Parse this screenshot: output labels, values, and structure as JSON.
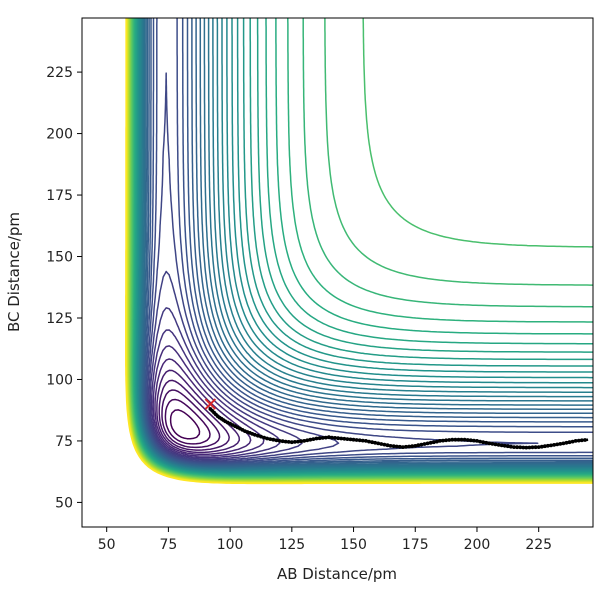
{
  "chart_data": {
    "type": "contour",
    "xlabel": "AB Distance/pm",
    "ylabel": "BC Distance/pm",
    "xlim": [
      40,
      247
    ],
    "ylim": [
      40,
      247
    ],
    "x_ticks": [
      50,
      75,
      100,
      125,
      150,
      175,
      200,
      225
    ],
    "y_ticks": [
      50,
      75,
      100,
      125,
      150,
      175,
      200,
      225
    ],
    "grid": false,
    "colormap": "viridis",
    "colormap_stops": [
      "#440154",
      "#472d7b",
      "#3b528b",
      "#2c728e",
      "#21918c",
      "#28ae80",
      "#5ec962",
      "#addc30",
      "#fde725"
    ],
    "start_point": {
      "x": 92,
      "y": 90,
      "marker": "x",
      "color": "#d62728"
    },
    "trajectory": {
      "color": "#000000",
      "marker": "dot",
      "x": [
        92,
        95,
        98,
        102,
        106,
        110,
        115,
        120,
        125,
        130,
        135,
        140,
        145,
        150,
        155,
        160,
        165,
        170,
        175,
        180,
        185,
        190,
        195,
        200,
        205,
        210,
        215,
        220,
        225,
        230,
        235,
        240,
        245
      ],
      "y": [
        88,
        85,
        83,
        81,
        79,
        77.5,
        76,
        75,
        74.5,
        75,
        76,
        76.5,
        76,
        75.5,
        75,
        74,
        73,
        72.5,
        73,
        74,
        75,
        75.5,
        75.5,
        75,
        74,
        73.2,
        72.5,
        72.3,
        72.5,
        73.2,
        74,
        75,
        75.5
      ]
    }
  }
}
